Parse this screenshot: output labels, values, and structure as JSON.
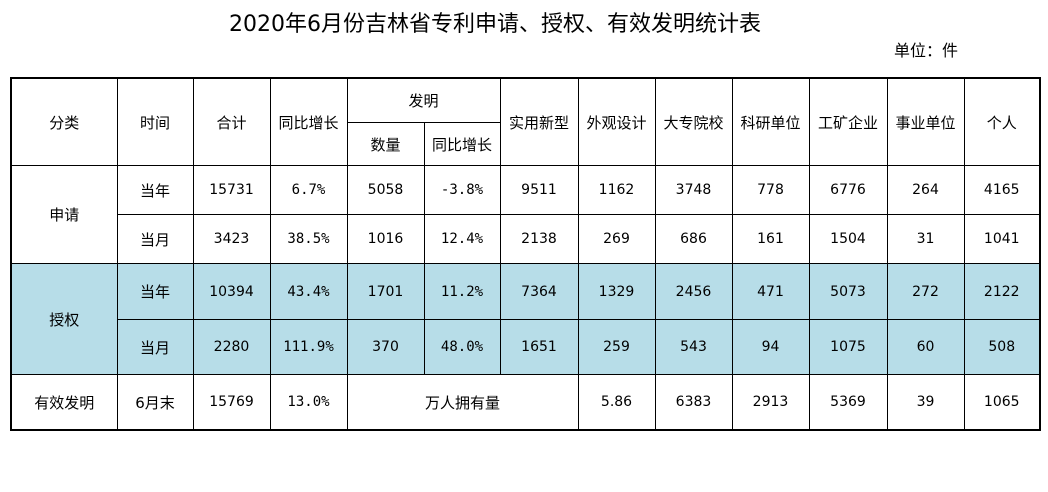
{
  "title": "2020年6月份吉林省专利申请、授权、有效发明统计表",
  "unit": "单位：件",
  "headers": {
    "category": "分类",
    "time": "时间",
    "total": "合计",
    "yoy": "同比增长",
    "invention": "发明",
    "inv_count": "数量",
    "inv_yoy": "同比增长",
    "utility": "实用新型",
    "design": "外观设计",
    "university": "大专院校",
    "research": "科研单位",
    "enterprise": "工矿企业",
    "institution": "事业单位",
    "individual": "个人"
  },
  "rows": {
    "application": {
      "label": "申请",
      "year": {
        "time": "当年",
        "total": "15731",
        "yoy": "6.7%",
        "inv_count": "5058",
        "inv_yoy": "-3.8%",
        "utility": "9511",
        "design": "1162",
        "university": "3748",
        "research": "778",
        "enterprise": "6776",
        "institution": "264",
        "individual": "4165"
      },
      "month": {
        "time": "当月",
        "total": "3423",
        "yoy": "38.5%",
        "inv_count": "1016",
        "inv_yoy": "12.4%",
        "utility": "2138",
        "design": "269",
        "university": "686",
        "research": "161",
        "enterprise": "1504",
        "institution": "31",
        "individual": "1041"
      }
    },
    "grant": {
      "label": "授权",
      "year": {
        "time": "当年",
        "total": "10394",
        "yoy": "43.4%",
        "inv_count": "1701",
        "inv_yoy": "11.2%",
        "utility": "7364",
        "design": "1329",
        "university": "2456",
        "research": "471",
        "enterprise": "5073",
        "institution": "272",
        "individual": "2122"
      },
      "month": {
        "time": "当月",
        "total": "2280",
        "yoy": "111.9%",
        "inv_count": "370",
        "inv_yoy": "48.0%",
        "utility": "1651",
        "design": "259",
        "university": "543",
        "research": "94",
        "enterprise": "1075",
        "institution": "60",
        "individual": "508"
      }
    },
    "effective": {
      "label": "有效发明",
      "time": "6月末",
      "total": "15769",
      "yoy": "13.0%",
      "per_10k_label": "万人拥有量",
      "per_10k_value": "5.86",
      "university": "6383",
      "research": "2913",
      "enterprise": "5369",
      "institution": "39",
      "individual": "1065"
    }
  },
  "colors": {
    "grant_row_bg": "#b7dde8",
    "border": "#000000"
  }
}
